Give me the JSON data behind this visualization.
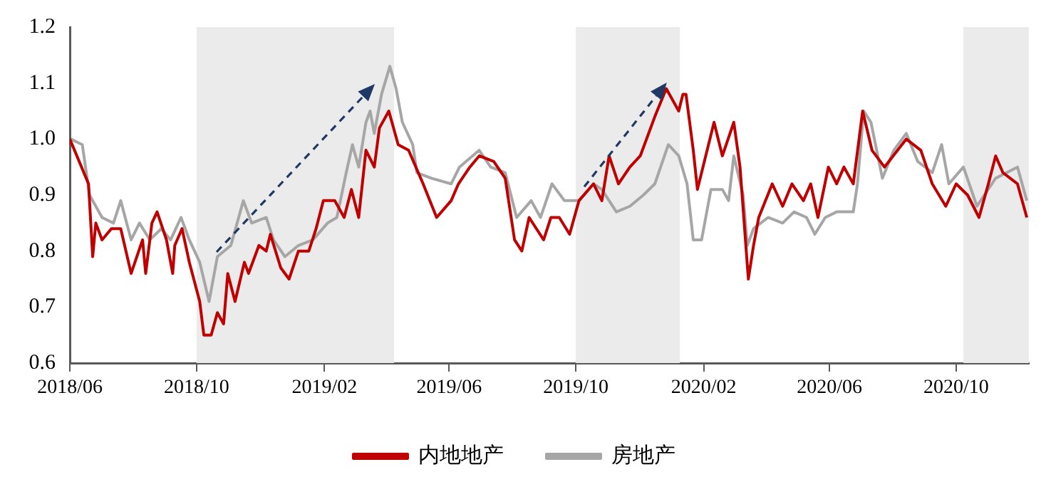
{
  "chart_data": {
    "type": "line",
    "xlim": [
      "2018-06-01",
      "2020-12-10"
    ],
    "xticks": [
      {
        "value": "2018-06",
        "label": "2018/06"
      },
      {
        "value": "2018-10",
        "label": "2018/10"
      },
      {
        "value": "2019-02",
        "label": "2019/02"
      },
      {
        "value": "2019-06",
        "label": "2019/06"
      },
      {
        "value": "2019-10",
        "label": "2019/10"
      },
      {
        "value": "2020-02",
        "label": "2020/02"
      },
      {
        "value": "2020-06",
        "label": "2020/06"
      },
      {
        "value": "2020-10",
        "label": "2020/10"
      }
    ],
    "ylim": [
      0.6,
      1.2
    ],
    "yticks": [
      0.6,
      0.7,
      0.8,
      0.9,
      {
        "value": 1.0,
        "label": "1.0"
      },
      1.1,
      1.2
    ],
    "grid": false,
    "legend": "bottom",
    "marker": "none",
    "line_style": "solid",
    "bands": [
      {
        "axis": "x",
        "from": "2018-10-01",
        "to": "2019-04-09",
        "color": "#ebebeb"
      },
      {
        "axis": "x",
        "from": "2019-10-01",
        "to": "2020-01-09",
        "color": "#ebebeb"
      },
      {
        "axis": "x",
        "from": "2020-10-08",
        "to": "2020-12-10",
        "color": "#ebebeb"
      }
    ],
    "series": [
      {
        "name": "内地地产",
        "color": "#c00000",
        "x": [
          "2018-06-01",
          "2018-06-19",
          "2018-06-23",
          "2018-06-26",
          "2018-07-02",
          "2018-07-11",
          "2018-07-20",
          "2018-07-30",
          "2018-08-10",
          "2018-08-13",
          "2018-08-19",
          "2018-08-24",
          "2018-09-02",
          "2018-09-08",
          "2018-09-10",
          "2018-09-17",
          "2018-09-24",
          "2018-10-04",
          "2018-10-08",
          "2018-10-15",
          "2018-10-21",
          "2018-10-27",
          "2018-10-31",
          "2018-11-07",
          "2018-11-16",
          "2018-11-20",
          "2018-11-30",
          "2018-12-07",
          "2018-12-11",
          "2018-12-21",
          "2018-12-29",
          "2019-01-07",
          "2019-01-17",
          "2019-01-24",
          "2019-01-31",
          "2019-02-11",
          "2019-02-20",
          "2019-02-27",
          "2019-03-06",
          "2019-03-13",
          "2019-03-21",
          "2019-03-26",
          "2019-04-04",
          "2019-04-13",
          "2019-04-23",
          "2019-05-07",
          "2019-05-20",
          "2019-06-03",
          "2019-06-10",
          "2019-06-21",
          "2019-06-30",
          "2019-07-14",
          "2019-07-25",
          "2019-08-03",
          "2019-08-10",
          "2019-08-17",
          "2019-08-31",
          "2019-09-07",
          "2019-09-15",
          "2019-09-25",
          "2019-10-04",
          "2019-10-18",
          "2019-10-26",
          "2019-11-02",
          "2019-11-11",
          "2019-11-22",
          "2019-12-02",
          "2019-12-16",
          "2019-12-27",
          "2020-01-08",
          "2020-01-12",
          "2020-01-15",
          "2020-01-22",
          "2020-01-26",
          "2020-02-11",
          "2020-02-19",
          "2020-03-01",
          "2020-03-07",
          "2020-03-15",
          "2020-03-20",
          "2020-03-25",
          "2020-04-07",
          "2020-04-17",
          "2020-04-26",
          "2020-05-07",
          "2020-05-14",
          "2020-05-21",
          "2020-05-31",
          "2020-06-08",
          "2020-06-15",
          "2020-06-24",
          "2020-07-03",
          "2020-07-12",
          "2020-07-24",
          "2020-08-14",
          "2020-08-28",
          "2020-09-08",
          "2020-09-21",
          "2020-10-01",
          "2020-10-12",
          "2020-10-23",
          "2020-11-01",
          "2020-11-08",
          "2020-11-15",
          "2020-11-29",
          "2020-12-08"
        ],
        "values": [
          1.0,
          0.92,
          0.79,
          0.85,
          0.82,
          0.84,
          0.84,
          0.76,
          0.82,
          0.76,
          0.85,
          0.87,
          0.82,
          0.76,
          0.81,
          0.84,
          0.78,
          0.71,
          0.65,
          0.65,
          0.69,
          0.67,
          0.76,
          0.71,
          0.78,
          0.76,
          0.81,
          0.8,
          0.83,
          0.77,
          0.75,
          0.8,
          0.8,
          0.84,
          0.89,
          0.89,
          0.86,
          0.91,
          0.86,
          0.98,
          0.95,
          1.02,
          1.05,
          0.99,
          0.98,
          0.92,
          0.86,
          0.89,
          0.92,
          0.95,
          0.97,
          0.96,
          0.93,
          0.82,
          0.8,
          0.86,
          0.82,
          0.86,
          0.86,
          0.83,
          0.89,
          0.92,
          0.89,
          0.97,
          0.92,
          0.95,
          0.97,
          1.04,
          1.09,
          1.05,
          1.08,
          1.08,
          0.98,
          0.91,
          1.03,
          0.97,
          1.03,
          0.95,
          0.75,
          0.81,
          0.86,
          0.92,
          0.88,
          0.92,
          0.89,
          0.92,
          0.86,
          0.95,
          0.92,
          0.95,
          0.92,
          1.05,
          0.98,
          0.95,
          1.0,
          0.98,
          0.92,
          0.88,
          0.92,
          0.9,
          0.86,
          0.92,
          0.97,
          0.94,
          0.92,
          0.86
        ]
      },
      {
        "name": "房地产",
        "color": "#a6a6a6",
        "x": [
          "2018-06-02",
          "2018-06-13",
          "2018-06-20",
          "2018-07-02",
          "2018-07-13",
          "2018-07-20",
          "2018-07-30",
          "2018-08-07",
          "2018-08-17",
          "2018-08-28",
          "2018-09-06",
          "2018-09-16",
          "2018-09-24",
          "2018-10-04",
          "2018-10-13",
          "2018-10-21",
          "2018-11-03",
          "2018-11-15",
          "2018-11-23",
          "2018-12-07",
          "2018-12-14",
          "2018-12-25",
          "2019-01-07",
          "2019-01-21",
          "2019-02-04",
          "2019-02-13",
          "2019-02-22",
          "2019-02-28",
          "2019-03-06",
          "2019-03-13",
          "2019-03-17",
          "2019-03-21",
          "2019-03-28",
          "2019-04-05",
          "2019-04-11",
          "2019-04-17",
          "2019-04-27",
          "2019-05-01",
          "2019-05-15",
          "2019-06-03",
          "2019-06-11",
          "2019-06-30",
          "2019-07-11",
          "2019-07-25",
          "2019-08-05",
          "2019-08-19",
          "2019-08-28",
          "2019-09-08",
          "2019-09-20",
          "2019-10-04",
          "2019-10-18",
          "2019-10-26",
          "2019-11-09",
          "2019-11-22",
          "2019-12-05",
          "2019-12-16",
          "2019-12-29",
          "2020-01-08",
          "2020-01-16",
          "2020-01-22",
          "2020-01-30",
          "2020-02-08",
          "2020-02-19",
          "2020-02-25",
          "2020-03-01",
          "2020-03-10",
          "2020-03-14",
          "2020-03-20",
          "2020-04-03",
          "2020-04-17",
          "2020-04-28",
          "2020-05-10",
          "2020-05-18",
          "2020-05-28",
          "2020-06-08",
          "2020-06-24",
          "2020-06-28",
          "2020-07-04",
          "2020-07-11",
          "2020-07-22",
          "2020-08-02",
          "2020-08-14",
          "2020-08-25",
          "2020-09-08",
          "2020-09-17",
          "2020-09-24",
          "2020-10-08",
          "2020-10-21",
          "2020-11-08",
          "2020-11-29",
          "2020-12-08"
        ],
        "values": [
          1.0,
          0.99,
          0.9,
          0.86,
          0.85,
          0.89,
          0.82,
          0.85,
          0.82,
          0.84,
          0.82,
          0.86,
          0.82,
          0.78,
          0.71,
          0.79,
          0.81,
          0.89,
          0.85,
          0.86,
          0.82,
          0.79,
          0.81,
          0.82,
          0.85,
          0.86,
          0.94,
          0.99,
          0.95,
          1.03,
          1.05,
          1.01,
          1.08,
          1.13,
          1.09,
          1.03,
          0.99,
          0.94,
          0.93,
          0.92,
          0.95,
          0.98,
          0.95,
          0.94,
          0.86,
          0.89,
          0.86,
          0.92,
          0.89,
          0.89,
          0.92,
          0.91,
          0.87,
          0.88,
          0.9,
          0.92,
          0.99,
          0.97,
          0.92,
          0.82,
          0.82,
          0.91,
          0.91,
          0.89,
          0.97,
          0.9,
          0.81,
          0.84,
          0.86,
          0.85,
          0.87,
          0.86,
          0.83,
          0.86,
          0.87,
          0.87,
          0.92,
          1.05,
          1.03,
          0.93,
          0.98,
          1.01,
          0.96,
          0.94,
          0.99,
          0.92,
          0.95,
          0.88,
          0.93,
          0.95,
          0.89
        ]
      }
    ]
  }
}
